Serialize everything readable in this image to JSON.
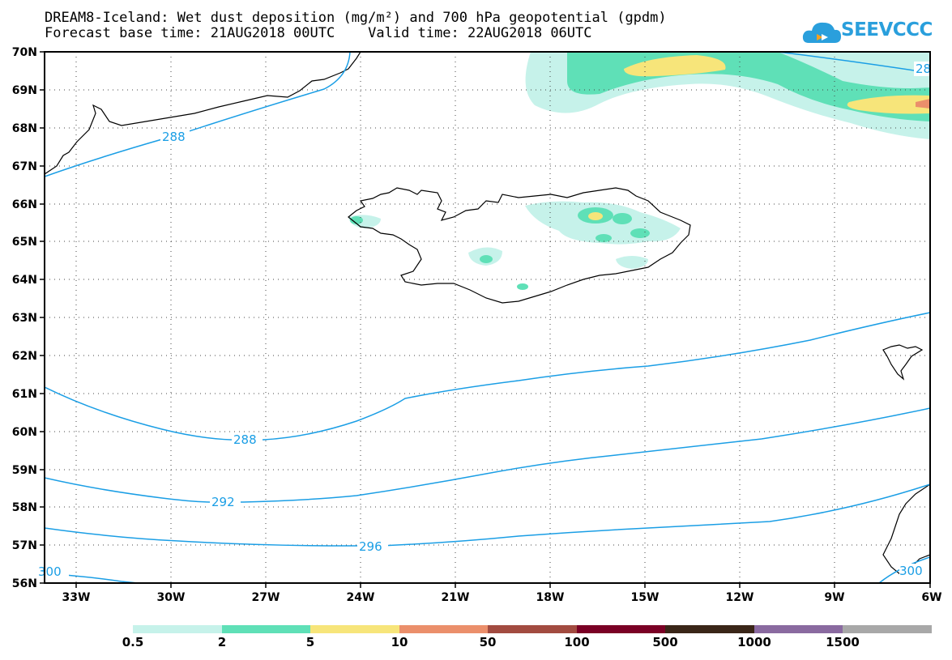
{
  "title": {
    "line1": "DREAM8-Iceland: Wet dust deposition (mg/m²) and 700 hPa geopotential (gpdm)",
    "line2": "Forecast base time: 21AUG2018 00UTC    Valid time: 22AUG2018 06UTC"
  },
  "logo": {
    "text": "SEEVCCC",
    "icon": "cloud-icon",
    "color": "#2a9fdc"
  },
  "map": {
    "region": "Iceland",
    "lat_labels": [
      "70N",
      "69N",
      "68N",
      "67N",
      "66N",
      "65N",
      "64N",
      "63N",
      "62N",
      "61N",
      "60N",
      "59N",
      "58N",
      "57N",
      "56N"
    ],
    "lon_labels": [
      "33W",
      "30W",
      "27W",
      "24W",
      "21W",
      "18W",
      "15W",
      "12W",
      "9W",
      "6W"
    ],
    "lat_range": [
      56,
      70
    ],
    "lon_range": [
      -34.2,
      -6
    ],
    "grid": "dotted",
    "contour_color": "#1a9ee5",
    "contour_labels": [
      "288",
      "288",
      "292",
      "296",
      "300",
      "300",
      "28"
    ]
  },
  "legend": {
    "labels": [
      "0.5",
      "2",
      "5",
      "10",
      "50",
      "100",
      "500",
      "1000",
      "1500"
    ],
    "colors": [
      "#c6f2ea",
      "#5fe0b7",
      "#f7e57a",
      "#eb8f6b",
      "#a24b40",
      "#7a0025",
      "#3a2618",
      "#8a6aa0",
      "#a8a8a8"
    ]
  },
  "chart_data": {
    "type": "heatmap",
    "title": "DREAM8-Iceland: Wet dust deposition (mg/m²) and 700 hPa geopotential (gpdm)",
    "xlabel": "",
    "ylabel": "",
    "x_ticks": [
      "33W",
      "30W",
      "27W",
      "24W",
      "21W",
      "18W",
      "15W",
      "12W",
      "9W",
      "6W"
    ],
    "y_ticks": [
      "70N",
      "69N",
      "68N",
      "67N",
      "66N",
      "65N",
      "64N",
      "63N",
      "62N",
      "61N",
      "60N",
      "59N",
      "58N",
      "57N",
      "56N"
    ],
    "legend_levels": [
      0.5,
      2,
      5,
      10,
      50,
      100,
      500,
      1000,
      1500
    ],
    "contour_levels_gpdm": [
      288,
      292,
      296,
      300
    ],
    "grid": true
  }
}
